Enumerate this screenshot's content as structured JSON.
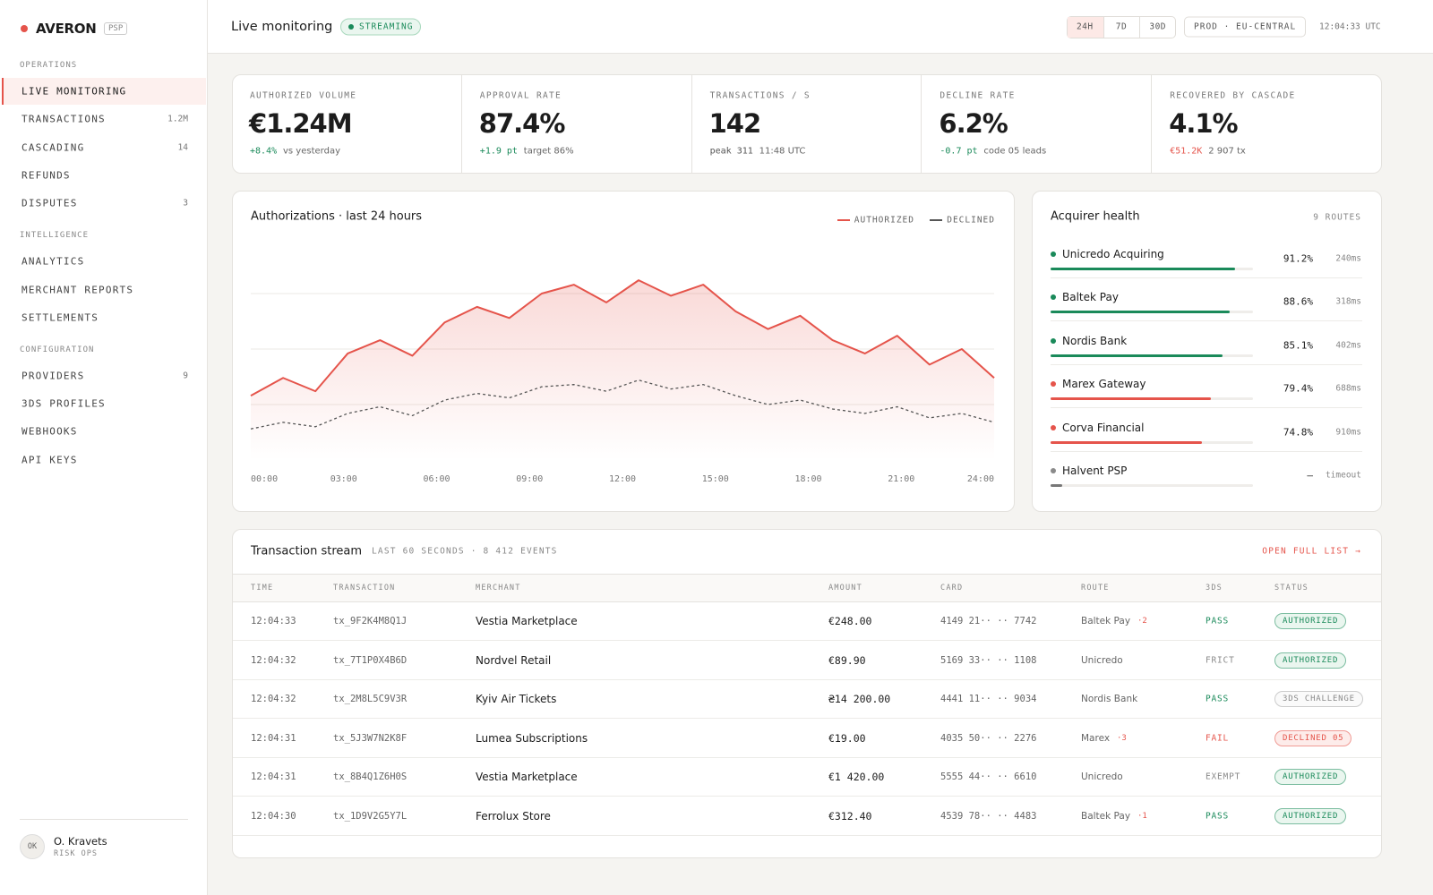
{
  "brand": {
    "name": "AVERON",
    "tag": "PSP"
  },
  "nav": [
    {
      "section": "OPERATIONS",
      "items": [
        {
          "label": "LIVE MONITORING",
          "active": true
        },
        {
          "label": "TRANSACTIONS",
          "count": "1.2M"
        },
        {
          "label": "CASCADING",
          "count": "14"
        },
        {
          "label": "REFUNDS"
        },
        {
          "label": "DISPUTES",
          "count": "3"
        }
      ]
    },
    {
      "section": "INTELLIGENCE",
      "items": [
        {
          "label": "ANALYTICS"
        },
        {
          "label": "MERCHANT REPORTS"
        },
        {
          "label": "SETTLEMENTS"
        }
      ]
    },
    {
      "section": "CONFIGURATION",
      "items": [
        {
          "label": "PROVIDERS",
          "count": "9"
        },
        {
          "label": "3DS PROFILES"
        },
        {
          "label": "WEBHOOKS"
        },
        {
          "label": "API KEYS"
        }
      ]
    }
  ],
  "user": {
    "initials": "OK",
    "name": "O. Kravets",
    "role": "RISK OPS"
  },
  "header": {
    "title": "Live monitoring",
    "status": "STREAMING",
    "ranges": [
      "24H",
      "7D",
      "30D"
    ],
    "active_range": 0,
    "env": "PROD · EU-CENTRAL",
    "time": "12:04:33 UTC"
  },
  "kpis": [
    {
      "label": "AUTHORIZED VOLUME",
      "value": "€1.24M",
      "delta": "+8.4%",
      "note": "vs yesterday",
      "tone": "green"
    },
    {
      "label": "APPROVAL RATE",
      "value": "87.4%",
      "delta": "+1.9 pt",
      "note": "target 86%",
      "tone": "green"
    },
    {
      "label": "TRANSACTIONS / S",
      "value": "142",
      "delta": "peak 311",
      "note": "11:48 UTC",
      "tone": "gray"
    },
    {
      "label": "DECLINE RATE",
      "value": "6.2%",
      "delta": "-0.7 pt",
      "note": "code 05 leads",
      "tone": "green"
    },
    {
      "label": "RECOVERED BY CASCADE",
      "value": "4.1%",
      "delta": "€51.2K",
      "note": "2 907 tx",
      "tone": "red"
    }
  ],
  "chart": {
    "type": "line",
    "title": "Authorizations · last 24 hours",
    "grid": true,
    "ylim": [
      0,
      100
    ],
    "yticks": [
      25,
      50,
      75
    ],
    "x_labels": [
      "00:00",
      "03:00",
      "06:00",
      "09:00",
      "12:00",
      "15:00",
      "18:00",
      "21:00",
      "24:00"
    ],
    "series": [
      {
        "name": "AUTHORIZED",
        "color": "#e5544b",
        "style": "solid",
        "area": true,
        "values": [
          29,
          37,
          31,
          48,
          54,
          47,
          62,
          69,
          64,
          75,
          79,
          71,
          81,
          74,
          79,
          67,
          59,
          65,
          54,
          48,
          56,
          43,
          50,
          37
        ]
      },
      {
        "name": "DECLINED",
        "color": "#555555",
        "style": "dashed",
        "values": [
          14,
          17,
          15,
          21,
          24,
          20,
          27,
          30,
          28,
          33,
          34,
          31,
          36,
          32,
          34,
          29,
          25,
          27,
          23,
          21,
          24,
          19,
          21,
          17
        ]
      }
    ]
  },
  "acquirers": {
    "title": "Acquirer health",
    "count": "9 ROUTES",
    "routes": [
      {
        "name": "Unicredo Acquiring",
        "value": 91.2,
        "value_label": "91.2%",
        "latency": "240ms",
        "tone": "green"
      },
      {
        "name": "Baltek Pay",
        "value": 88.6,
        "value_label": "88.6%",
        "latency": "318ms",
        "tone": "green"
      },
      {
        "name": "Nordis Bank",
        "value": 85.1,
        "value_label": "85.1%",
        "latency": "402ms",
        "tone": "green"
      },
      {
        "name": "Marex Gateway",
        "value": 79.4,
        "value_label": "79.4%",
        "latency": "688ms",
        "tone": "red"
      },
      {
        "name": "Corva Financial",
        "value": 74.8,
        "value_label": "74.8%",
        "latency": "910ms",
        "tone": "red"
      },
      {
        "name": "Halvent PSP",
        "value": null,
        "value_label": "—",
        "latency": "timeout",
        "tone": "gray"
      }
    ]
  },
  "stream": {
    "title": "Transaction stream",
    "meta": "LAST 60 SECONDS · 8 412 EVENTS",
    "link": "OPEN FULL LIST →",
    "columns": [
      "TIME",
      "TRANSACTION",
      "MERCHANT",
      "AMOUNT",
      "CARD",
      "ROUTE",
      "3DS",
      "STATUS"
    ],
    "rows": [
      {
        "time": "12:04:33",
        "id": "tx_9F2K4M8Q1J",
        "merchant": "Vestia Marketplace",
        "amount": "€248.00",
        "card": "4149 21·· ·· 7742",
        "route": "Baltek Pay",
        "retry": "·2",
        "tds": "PASS",
        "tds_tone": "green",
        "status": "AUTHORIZED",
        "status_tone": "green"
      },
      {
        "time": "12:04:32",
        "id": "tx_7T1P0X4B6D",
        "merchant": "Nordvel Retail",
        "amount": "€89.90",
        "card": "5169 33·· ·· 1108",
        "route": "Unicredo",
        "tds": "FRICT",
        "tds_tone": "gray",
        "status": "AUTHORIZED",
        "status_tone": "green"
      },
      {
        "time": "12:04:32",
        "id": "tx_2M8L5C9V3R",
        "merchant": "Kyiv Air Tickets",
        "amount": "₴14 200.00",
        "card": "4441 11·· ·· 9034",
        "route": "Nordis Bank",
        "tds": "PASS",
        "tds_tone": "green",
        "status": "3DS CHALLENGE",
        "status_tone": "gray"
      },
      {
        "time": "12:04:31",
        "id": "tx_5J3W7N2K8F",
        "merchant": "Lumea Subscriptions",
        "amount": "€19.00",
        "card": "4035 50·· ·· 2276",
        "route": "Marex",
        "retry": "·3",
        "tds": "FAIL",
        "tds_tone": "red",
        "status": "DECLINED 05",
        "status_tone": "red"
      },
      {
        "time": "12:04:31",
        "id": "tx_8B4Q1Z6H0S",
        "merchant": "Vestia Marketplace",
        "amount": "€1 420.00",
        "card": "5555 44·· ·· 6610",
        "route": "Unicredo",
        "tds": "EXEMPT",
        "tds_tone": "gray",
        "status": "AUTHORIZED",
        "status_tone": "green"
      },
      {
        "time": "12:04:30",
        "id": "tx_1D9V2G5Y7L",
        "merchant": "Ferrolux Store",
        "amount": "€312.40",
        "card": "4539 78·· ·· 4483",
        "route": "Baltek Pay",
        "retry": "·1",
        "tds": "PASS",
        "tds_tone": "green",
        "status": "AUTHORIZED",
        "status_tone": "green"
      }
    ]
  }
}
